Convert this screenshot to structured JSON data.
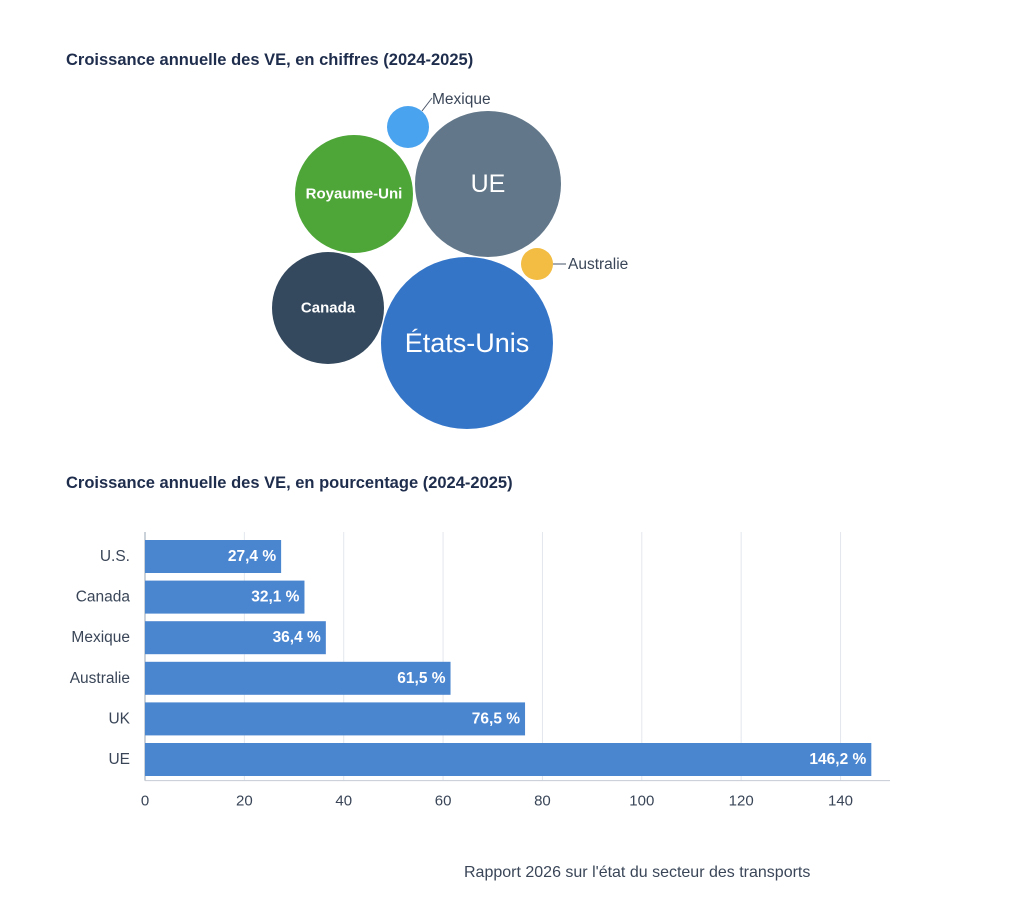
{
  "chart_data": [
    {
      "type": "bubble",
      "title": "Croissance annuelle des VE, en chiffres (2024-2025)",
      "series": [
        {
          "name": "États-Unis",
          "color": "#3575c8",
          "label_inside": true
        },
        {
          "name": "UE",
          "color": "#627789",
          "label_inside": true
        },
        {
          "name": "Royaume-Uni",
          "color": "#4ea638",
          "label_inside": true
        },
        {
          "name": "Canada",
          "color": "#34495e",
          "label_inside": true
        },
        {
          "name": "Mexique",
          "color": "#4aa3ef",
          "label_inside": false
        },
        {
          "name": "Australie",
          "color": "#f3bc42",
          "label_inside": false
        }
      ]
    },
    {
      "type": "bar",
      "orientation": "horizontal",
      "title": "Croissance annuelle des VE, en pourcentage (2024-2025)",
      "categories": [
        "U.S.",
        "Canada",
        "Mexique",
        "Australie",
        "UK",
        "UE"
      ],
      "values": [
        27.4,
        32.1,
        36.4,
        61.5,
        76.5,
        146.2
      ],
      "data_labels": [
        "27,4 %",
        "32,1 %",
        "36,4 %",
        "61,5 %",
        "76,5 %",
        "146,2 %"
      ],
      "x_ticks": [
        0,
        20,
        40,
        60,
        80,
        100,
        120,
        140
      ],
      "xlim": [
        0,
        150
      ],
      "grid": true,
      "bar_color": "#4a85d0"
    }
  ],
  "footer": "Rapport 2026 sur l'état du secteur des transports"
}
